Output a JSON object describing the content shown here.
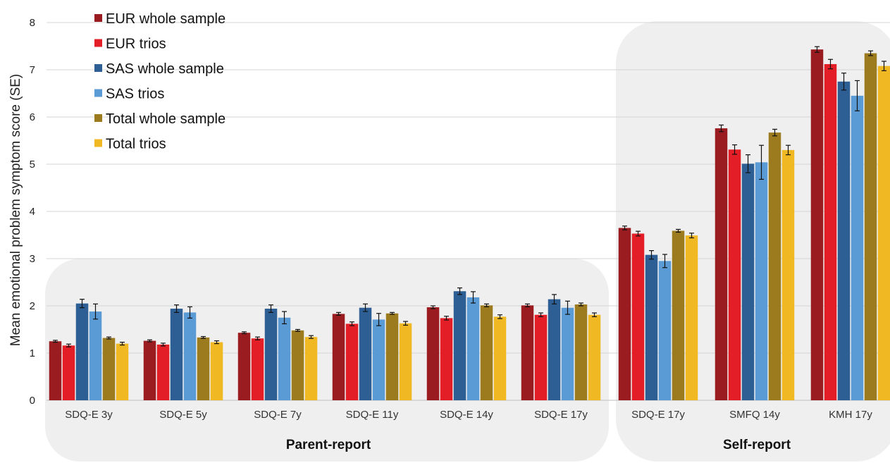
{
  "chart_data": {
    "type": "bar",
    "ylabel": "Mean emotional problem symptom score (SE)",
    "ylim": [
      0,
      8
    ],
    "yticks": [
      0,
      1,
      2,
      3,
      4,
      5,
      6,
      7,
      8
    ],
    "grid": true,
    "legend_position": "top-left",
    "categories": [
      "SDQ-E 3y",
      "SDQ-E 5y",
      "SDQ-E 7y",
      "SDQ-E 11y",
      "SDQ-E 14y",
      "SDQ-E 17y",
      "SDQ-E 17y",
      "SMFQ 14y",
      "KMH 17y"
    ],
    "groups": [
      {
        "label": "Parent-report",
        "start": 0,
        "end": 5
      },
      {
        "label": "Self-report",
        "start": 6,
        "end": 8
      }
    ],
    "series": [
      {
        "name": "EUR whole sample",
        "color": "#9b1c20",
        "values": [
          1.25,
          1.26,
          1.43,
          1.83,
          1.97,
          2.01,
          3.65,
          5.76,
          7.43
        ],
        "se": [
          0.02,
          0.02,
          0.02,
          0.03,
          0.03,
          0.03,
          0.04,
          0.07,
          0.06
        ]
      },
      {
        "name": "EUR trios",
        "color": "#e31e26",
        "values": [
          1.16,
          1.18,
          1.31,
          1.62,
          1.74,
          1.81,
          3.53,
          5.31,
          7.12
        ],
        "se": [
          0.03,
          0.03,
          0.03,
          0.04,
          0.04,
          0.04,
          0.05,
          0.1,
          0.1
        ]
      },
      {
        "name": "SAS whole sample",
        "color": "#2d5f94",
        "values": [
          2.05,
          1.94,
          1.94,
          1.96,
          2.31,
          2.14,
          3.08,
          5.01,
          6.75
        ],
        "se": [
          0.09,
          0.08,
          0.08,
          0.08,
          0.07,
          0.1,
          0.09,
          0.19,
          0.18
        ]
      },
      {
        "name": "SAS trios",
        "color": "#5b9bd5",
        "values": [
          1.88,
          1.86,
          1.75,
          1.71,
          2.18,
          1.96,
          2.95,
          5.04,
          6.45
        ],
        "se": [
          0.16,
          0.12,
          0.13,
          0.13,
          0.12,
          0.14,
          0.14,
          0.36,
          0.32
        ]
      },
      {
        "name": "Total whole sample",
        "color": "#9c7a1e",
        "values": [
          1.32,
          1.33,
          1.48,
          1.84,
          2.01,
          2.03,
          3.59,
          5.67,
          7.35
        ],
        "se": [
          0.02,
          0.02,
          0.02,
          0.02,
          0.03,
          0.03,
          0.03,
          0.07,
          0.05
        ]
      },
      {
        "name": "Total trios",
        "color": "#f0b823",
        "values": [
          1.2,
          1.23,
          1.34,
          1.63,
          1.77,
          1.81,
          3.49,
          5.3,
          7.08
        ],
        "se": [
          0.03,
          0.03,
          0.03,
          0.04,
          0.04,
          0.04,
          0.05,
          0.1,
          0.1
        ]
      }
    ]
  }
}
